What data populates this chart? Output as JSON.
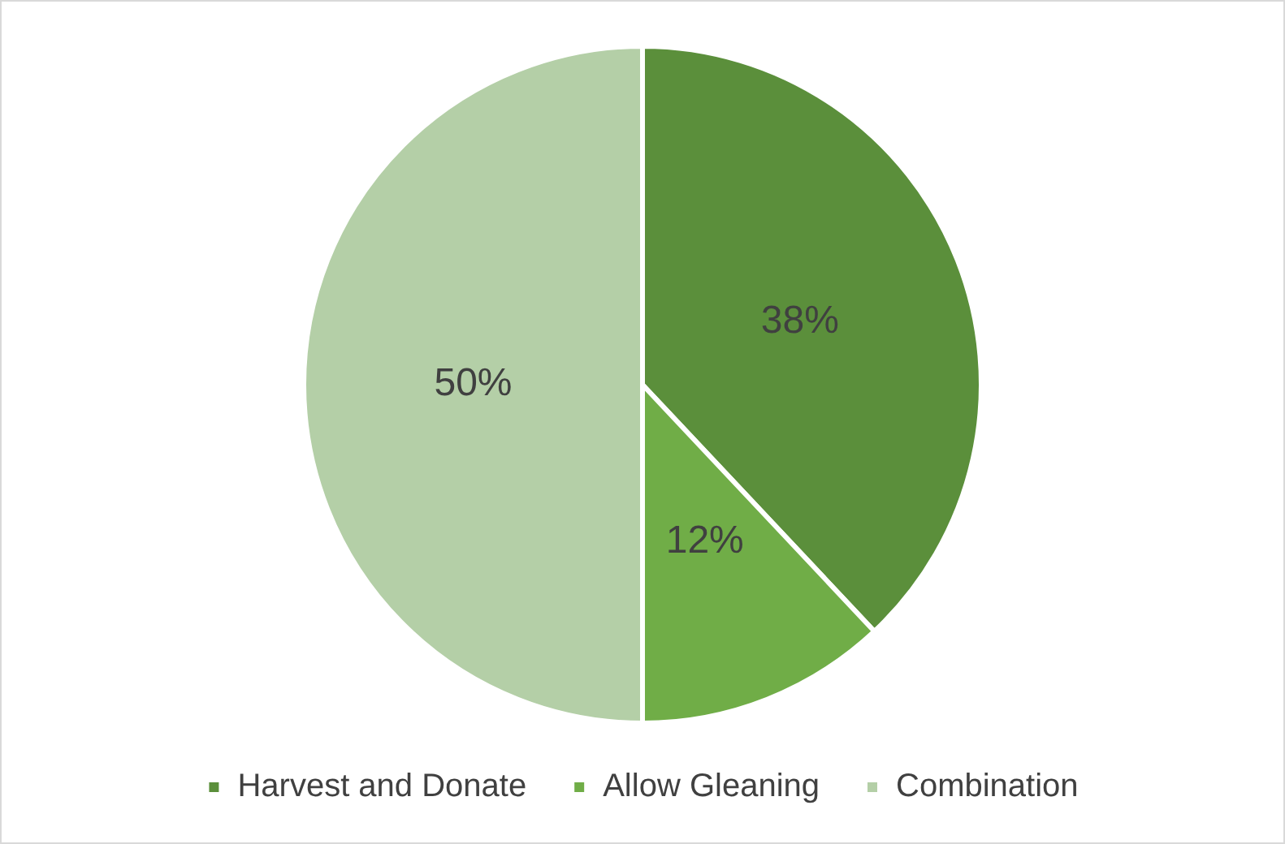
{
  "chart_data": {
    "type": "pie",
    "categories": [
      "Harvest and Donate",
      "Allow Gleaning",
      "Combination"
    ],
    "values": [
      38,
      12,
      50
    ],
    "colors": [
      "#5b8f3b",
      "#70ad47",
      "#b4cfa7"
    ],
    "value_labels": [
      "38%",
      "12%",
      "50%"
    ],
    "legend": "bottom"
  }
}
